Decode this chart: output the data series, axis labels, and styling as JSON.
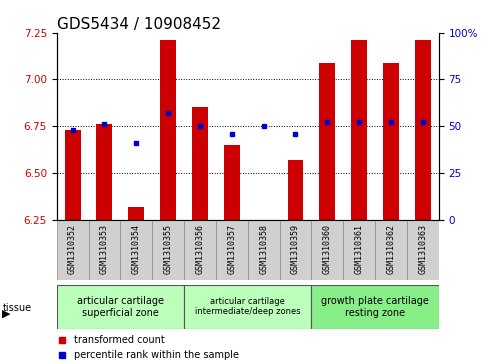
{
  "title": "GDS5434 / 10908452",
  "samples": [
    "GSM1310352",
    "GSM1310353",
    "GSM1310354",
    "GSM1310355",
    "GSM1310356",
    "GSM1310357",
    "GSM1310358",
    "GSM1310359",
    "GSM1310360",
    "GSM1310361",
    "GSM1310362",
    "GSM1310363"
  ],
  "red_values": [
    6.73,
    6.76,
    6.32,
    7.21,
    6.85,
    6.65,
    6.25,
    6.57,
    7.09,
    7.21,
    7.09,
    7.21
  ],
  "blue_values": [
    6.73,
    6.76,
    6.66,
    6.82,
    6.75,
    6.71,
    6.75,
    6.71,
    6.77,
    6.77,
    6.77,
    6.77
  ],
  "ylim_left": [
    6.25,
    7.25
  ],
  "ylim_right": [
    0,
    100
  ],
  "yticks_left": [
    6.25,
    6.5,
    6.75,
    7.0,
    7.25
  ],
  "yticks_right": [
    0,
    25,
    50,
    75,
    100
  ],
  "grid_values": [
    6.5,
    6.75,
    7.0
  ],
  "bar_color": "#cc0000",
  "dot_color": "#0000cc",
  "bar_bottom": 6.25,
  "tissue_groups": [
    {
      "label": "articular cartilage\nsuperficial zone",
      "start": 0,
      "end": 4,
      "color": "#bbffbb"
    },
    {
      "label": "articular cartilage\nintermediate/deep zones",
      "start": 4,
      "end": 8,
      "color": "#bbffbb"
    },
    {
      "label": "growth plate cartilage\nresting zone",
      "start": 8,
      "end": 12,
      "color": "#88ee88"
    }
  ],
  "legend_red": "transformed count",
  "legend_blue": "percentile rank within the sample",
  "tick_label_color_left": "#cc0000",
  "tick_label_color_right": "#0000cc",
  "bar_width": 0.5,
  "title_fontsize": 11
}
